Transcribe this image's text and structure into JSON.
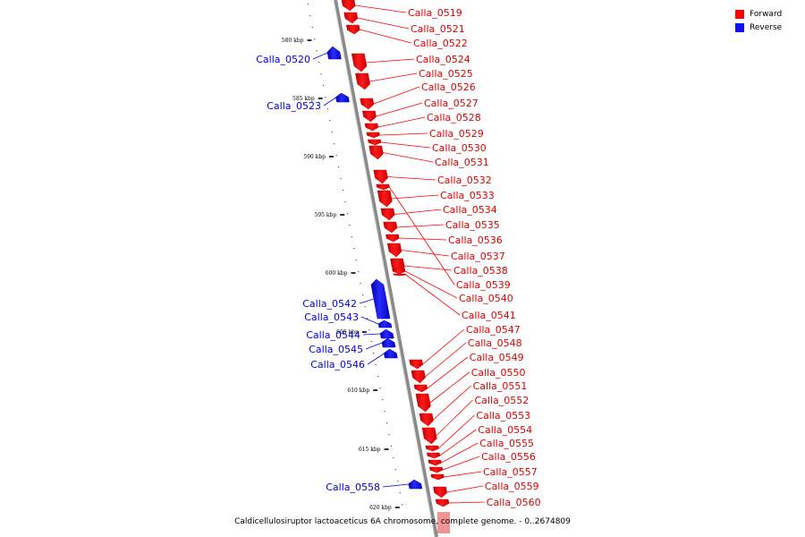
{
  "legend": {
    "forward_label": "Forward",
    "reverse_label": "Reverse",
    "forward_color": "#ff0000",
    "reverse_color": "#1010ee"
  },
  "caption": "Caldicellulosiruptor lactoaceticus 6A chromosome, complete genome. - 0..2674809",
  "ticks": [
    "580 kbp",
    "585 kbp",
    "590 kbp",
    "595 kbp",
    "600 kbp",
    "605 kbp",
    "610 kbp",
    "615 kbp",
    "620 kbp"
  ],
  "genes_reverse": [
    "Calla_0520",
    "Calla_0523",
    "Calla_0542",
    "Calla_0543",
    "Calla_0544",
    "Calla_0545",
    "Calla_0546",
    "Calla_0558"
  ],
  "genes_forward": [
    "Calla_0519",
    "Calla_0521",
    "Calla_0522",
    "Calla_0524",
    "Calla_0525",
    "Calla_0526",
    "Calla_0527",
    "Calla_0528",
    "Calla_0529",
    "Calla_0530",
    "Calla_0531",
    "Calla_0532",
    "Calla_0533",
    "Calla_0534",
    "Calla_0535",
    "Calla_0536",
    "Calla_0537",
    "Calla_0538",
    "Calla_0539",
    "Calla_0540",
    "Calla_0541",
    "Calla_0547",
    "Calla_0548",
    "Calla_0549",
    "Calla_0550",
    "Calla_0551",
    "Calla_0552",
    "Calla_0553",
    "Calla_0554",
    "Calla_0555",
    "Calla_0556",
    "Calla_0557",
    "Calla_0559",
    "Calla_0560"
  ]
}
